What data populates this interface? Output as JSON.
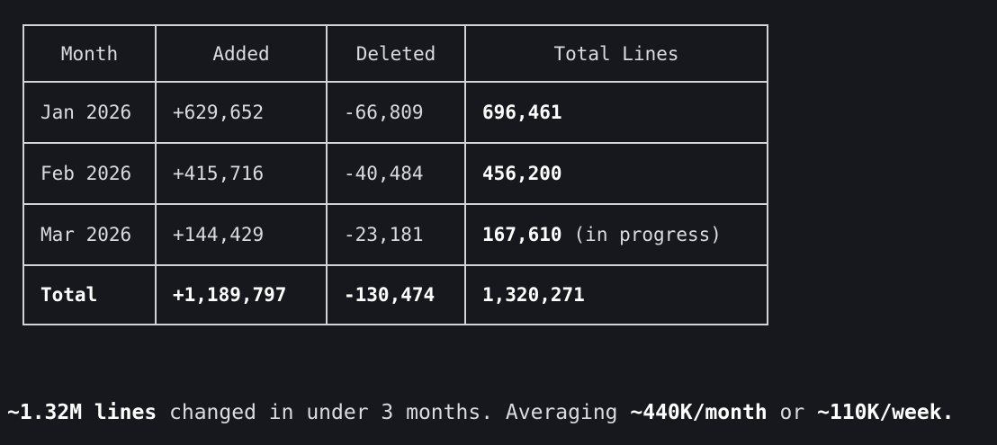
{
  "colors": {
    "background": "#16181d",
    "border": "#d2d3d6",
    "text": "#d9dbde",
    "bold_text": "#ffffff"
  },
  "table": {
    "columns": [
      "Month",
      "Added",
      "Deleted",
      "Total Lines"
    ],
    "rows": [
      {
        "month": "Jan 2026",
        "added": "+629,652",
        "deleted": "-66,809",
        "total": "696,461",
        "total_note": "",
        "is_total_row": false
      },
      {
        "month": "Feb 2026",
        "added": "+415,716",
        "deleted": "-40,484",
        "total": "456,200",
        "total_note": "",
        "is_total_row": false
      },
      {
        "month": "Mar 2026",
        "added": "+144,429",
        "deleted": "-23,181",
        "total": "167,610",
        "total_note": "(in progress)",
        "is_total_row": false
      },
      {
        "month": "Total",
        "added": "+1,189,797",
        "deleted": "-130,474",
        "total": "1,320,271",
        "total_note": "",
        "is_total_row": true
      }
    ]
  },
  "caption": {
    "segments": [
      {
        "text": "~1.32M lines",
        "bold": true
      },
      {
        "text": " changed in under 3 months. Averaging ",
        "bold": false
      },
      {
        "text": "~440K/month",
        "bold": true
      },
      {
        "text": " or ",
        "bold": false
      },
      {
        "text": "~110K/week.",
        "bold": true
      }
    ]
  }
}
